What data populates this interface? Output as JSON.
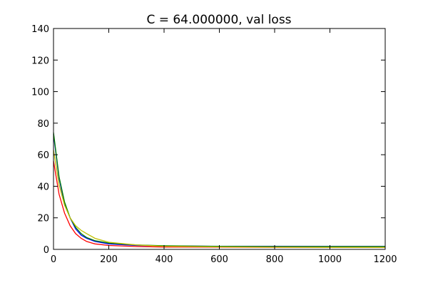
{
  "chart_data": {
    "type": "line",
    "title": "C = 64.000000, val loss",
    "xlabel": "",
    "ylabel": "",
    "xlim": [
      0,
      1200
    ],
    "ylim": [
      0,
      140
    ],
    "x_ticks": [
      0,
      200,
      400,
      600,
      800,
      1000,
      1200
    ],
    "y_ticks": [
      0,
      20,
      40,
      60,
      80,
      100,
      120,
      140
    ],
    "grid": false,
    "legend": "none",
    "series": [
      {
        "color": "#ff0000",
        "x": [
          0,
          20,
          40,
          60,
          80,
          100,
          120,
          150,
          200,
          300,
          400,
          600,
          800,
          1000,
          1200
        ],
        "values": [
          56,
          35,
          23,
          15,
          10,
          7,
          5,
          3.5,
          2.5,
          1.8,
          1.5,
          1.4,
          1.3,
          1.3,
          1.3
        ]
      },
      {
        "color": "#0000ff",
        "x": [
          0,
          20,
          40,
          60,
          80,
          100,
          120,
          150,
          200,
          300,
          400,
          600,
          800,
          1000,
          1200
        ],
        "values": [
          73,
          45,
          29,
          20,
          13,
          9,
          7,
          5,
          3.5,
          2.5,
          2.2,
          2.0,
          2.0,
          1.9,
          1.9
        ]
      },
      {
        "color": "#008000",
        "x": [
          0,
          20,
          40,
          60,
          80,
          100,
          120,
          150,
          200,
          300,
          400,
          600,
          800,
          1000,
          1200
        ],
        "values": [
          74,
          46,
          30,
          20,
          14,
          10,
          7.5,
          5.5,
          4,
          2.8,
          2.3,
          1.9,
          1.8,
          1.8,
          1.8
        ]
      },
      {
        "color": "#bfbf00",
        "x": [
          0,
          20,
          40,
          60,
          80,
          100,
          120,
          150,
          200,
          300,
          400,
          600,
          800,
          1000,
          1200
        ],
        "values": [
          63,
          41,
          28,
          20,
          15,
          12,
          10,
          7,
          4.5,
          2.8,
          2.0,
          1.6,
          1.4,
          1.3,
          1.3
        ]
      }
    ]
  }
}
